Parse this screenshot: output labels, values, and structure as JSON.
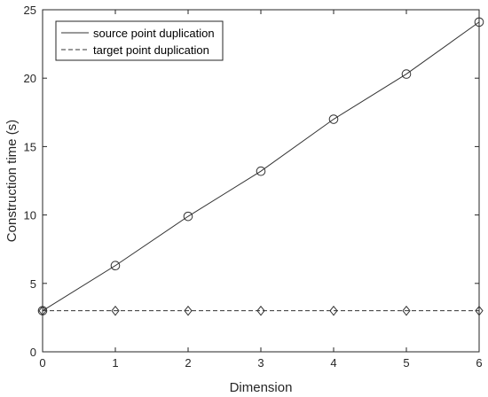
{
  "chart_data": {
    "type": "line",
    "title": "",
    "xlabel": "Dimension",
    "ylabel": "Construction time (s)",
    "xlim": [
      0,
      6
    ],
    "ylim": [
      0,
      25
    ],
    "x_ticks": [
      0,
      1,
      2,
      3,
      4,
      5,
      6
    ],
    "y_ticks": [
      0,
      5,
      10,
      15,
      20,
      25
    ],
    "grid": false,
    "legend_position": "top-left",
    "x": [
      0,
      1,
      2,
      3,
      4,
      5,
      6
    ],
    "series": [
      {
        "name": "source point duplication",
        "values": [
          3.0,
          6.3,
          9.9,
          13.2,
          17.0,
          20.3,
          24.1
        ],
        "line_style": "solid",
        "marker": "circle",
        "color": "#333333"
      },
      {
        "name": "target point duplication",
        "values": [
          3.0,
          3.0,
          3.0,
          3.0,
          3.0,
          3.0,
          3.0
        ],
        "line_style": "dashed",
        "marker": "diamond",
        "color": "#333333"
      }
    ]
  }
}
